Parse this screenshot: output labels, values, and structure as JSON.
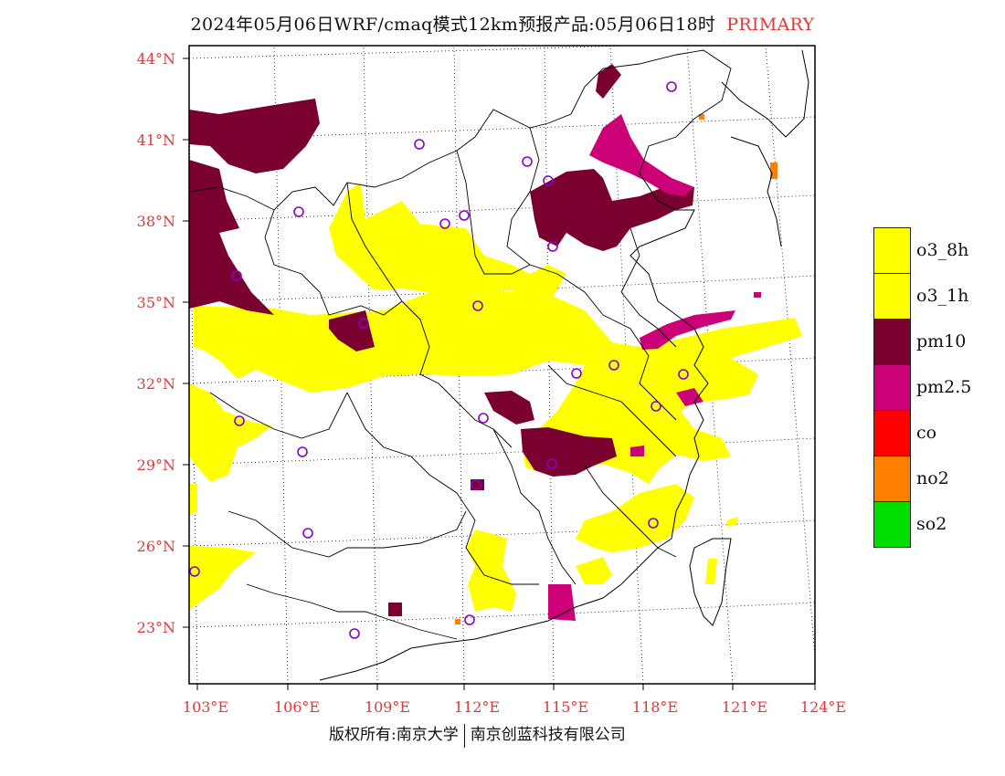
{
  "title": {
    "text": "2024年05月06日WRF/cmaq模式12km预报产品:05月06日18时",
    "tag": "PRIMARY"
  },
  "axes": {
    "lat_labels": [
      "44°N",
      "41°N",
      "38°N",
      "35°N",
      "32°N",
      "29°N",
      "26°N",
      "23°N"
    ],
    "lon_labels": [
      "103°E",
      "106°E",
      "109°E",
      "112°E",
      "115°E",
      "118°E",
      "121°E",
      "124°E"
    ],
    "label_color": "#e0393a"
  },
  "legend": [
    {
      "label": "o3_8h",
      "color": "#ffff00"
    },
    {
      "label": "o3_1h",
      "color": "#ffff00"
    },
    {
      "label": "pm10",
      "color": "#7a0030"
    },
    {
      "label": "pm2.5",
      "color": "#cc0077"
    },
    {
      "label": "co",
      "color": "#ff0000"
    },
    {
      "label": "no2",
      "color": "#ff7f00"
    },
    {
      "label": "so2",
      "color": "#00dd00"
    }
  ],
  "footer": {
    "left": "版权所有:南京大学",
    "right": "南京创蓝科技有限公司"
  }
}
